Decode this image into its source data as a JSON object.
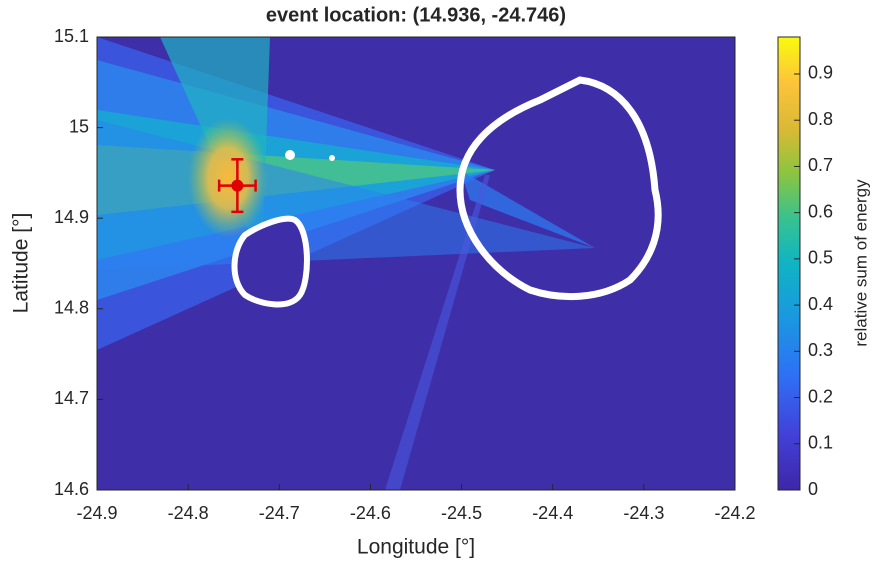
{
  "chart_data": {
    "type": "map",
    "title": "event location: (14.936, -24.746)",
    "xlabel": "Longitude [°]",
    "ylabel": "Latitude [°]",
    "xlim": [
      -24.9,
      -24.2
    ],
    "xticks": [
      -24.9,
      -24.8,
      -24.7,
      -24.6,
      -24.5,
      -24.4,
      -24.3,
      -24.2
    ],
    "ylim": [
      14.6,
      15.1
    ],
    "yticks": [
      14.6,
      14.7,
      14.8,
      14.9,
      15,
      15.1
    ],
    "event": {
      "lon": -24.746,
      "lat": 14.936,
      "lon_err": 0.02,
      "lat_err": 0.029,
      "color": "#e00000"
    },
    "colorbar": {
      "label": "relative sum of energy",
      "clim": [
        0,
        0.98
      ],
      "ticks": [
        0,
        0.1,
        0.2,
        0.3,
        0.4,
        0.5,
        0.6,
        0.7,
        0.8,
        0.9
      ]
    }
  }
}
